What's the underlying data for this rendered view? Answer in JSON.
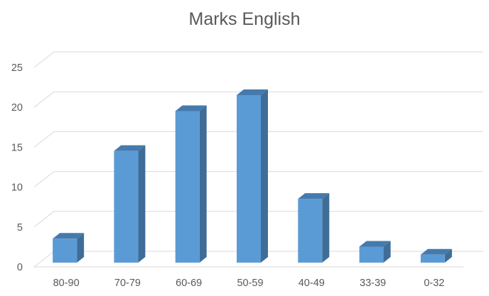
{
  "chart_data": {
    "type": "bar",
    "title": "Marks English",
    "xlabel": "",
    "ylabel": "",
    "categories": [
      "80-90",
      "70-79",
      "60-69",
      "50-59",
      "40-49",
      "33-39",
      "0-32"
    ],
    "values": [
      3,
      14,
      19,
      21,
      8,
      2,
      1
    ],
    "ylim": [
      0,
      25
    ],
    "yticks": [
      "0",
      "5",
      "10",
      "15",
      "20",
      "25"
    ],
    "grid": true,
    "legend": "none",
    "style": "3d-column",
    "colors": {
      "front": "#5b9bd5",
      "side": "#3f6d98",
      "top": "#467aad"
    }
  }
}
